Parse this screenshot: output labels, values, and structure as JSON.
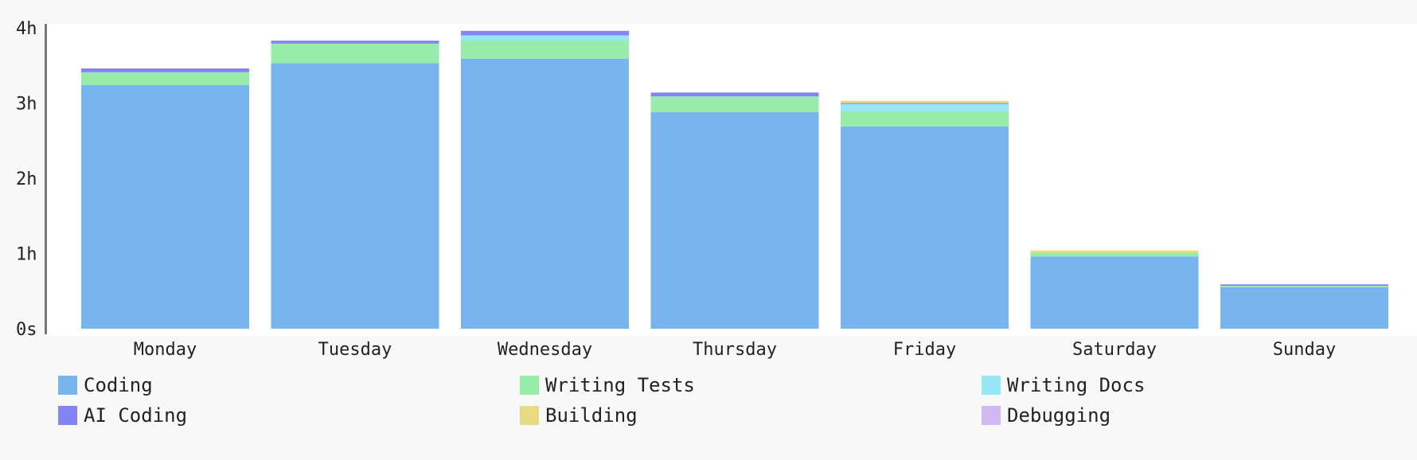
{
  "chart_data": {
    "type": "bar",
    "stacked": true,
    "categories": [
      "Monday",
      "Tuesday",
      "Wednesday",
      "Thursday",
      "Friday",
      "Saturday",
      "Sunday"
    ],
    "y_unit": "hours",
    "yticks": [
      {
        "value": 0,
        "label": "0s"
      },
      {
        "value": 1,
        "label": "1h"
      },
      {
        "value": 2,
        "label": "2h"
      },
      {
        "value": 3,
        "label": "3h"
      },
      {
        "value": 4,
        "label": "4h"
      }
    ],
    "ylim": [
      0,
      4
    ],
    "grid": false,
    "legend_position": "bottom",
    "series": [
      {
        "name": "Coding",
        "color": "#78b4ee",
        "values": [
          3.24,
          3.53,
          3.59,
          2.88,
          2.69,
          0.96,
          0.55
        ]
      },
      {
        "name": "Writing Tests",
        "color": "#96eca8",
        "values": [
          0.17,
          0.26,
          0.24,
          0.21,
          0.2,
          0.05,
          0.02
        ]
      },
      {
        "name": "Writing Docs",
        "color": "#96e6f4",
        "values": [
          0,
          0,
          0.07,
          0,
          0.1,
          0,
          0
        ]
      },
      {
        "name": "AI Coding",
        "color": "#8484f4",
        "values": [
          0.05,
          0.04,
          0.06,
          0.05,
          0.01,
          0,
          0.02
        ]
      },
      {
        "name": "Building",
        "color": "#e8da80",
        "values": [
          0,
          0,
          0,
          0,
          0.03,
          0.03,
          0
        ]
      },
      {
        "name": "Debugging",
        "color": "#d2b8f0",
        "values": [
          0,
          0,
          0,
          0,
          0,
          0,
          0
        ]
      }
    ]
  }
}
